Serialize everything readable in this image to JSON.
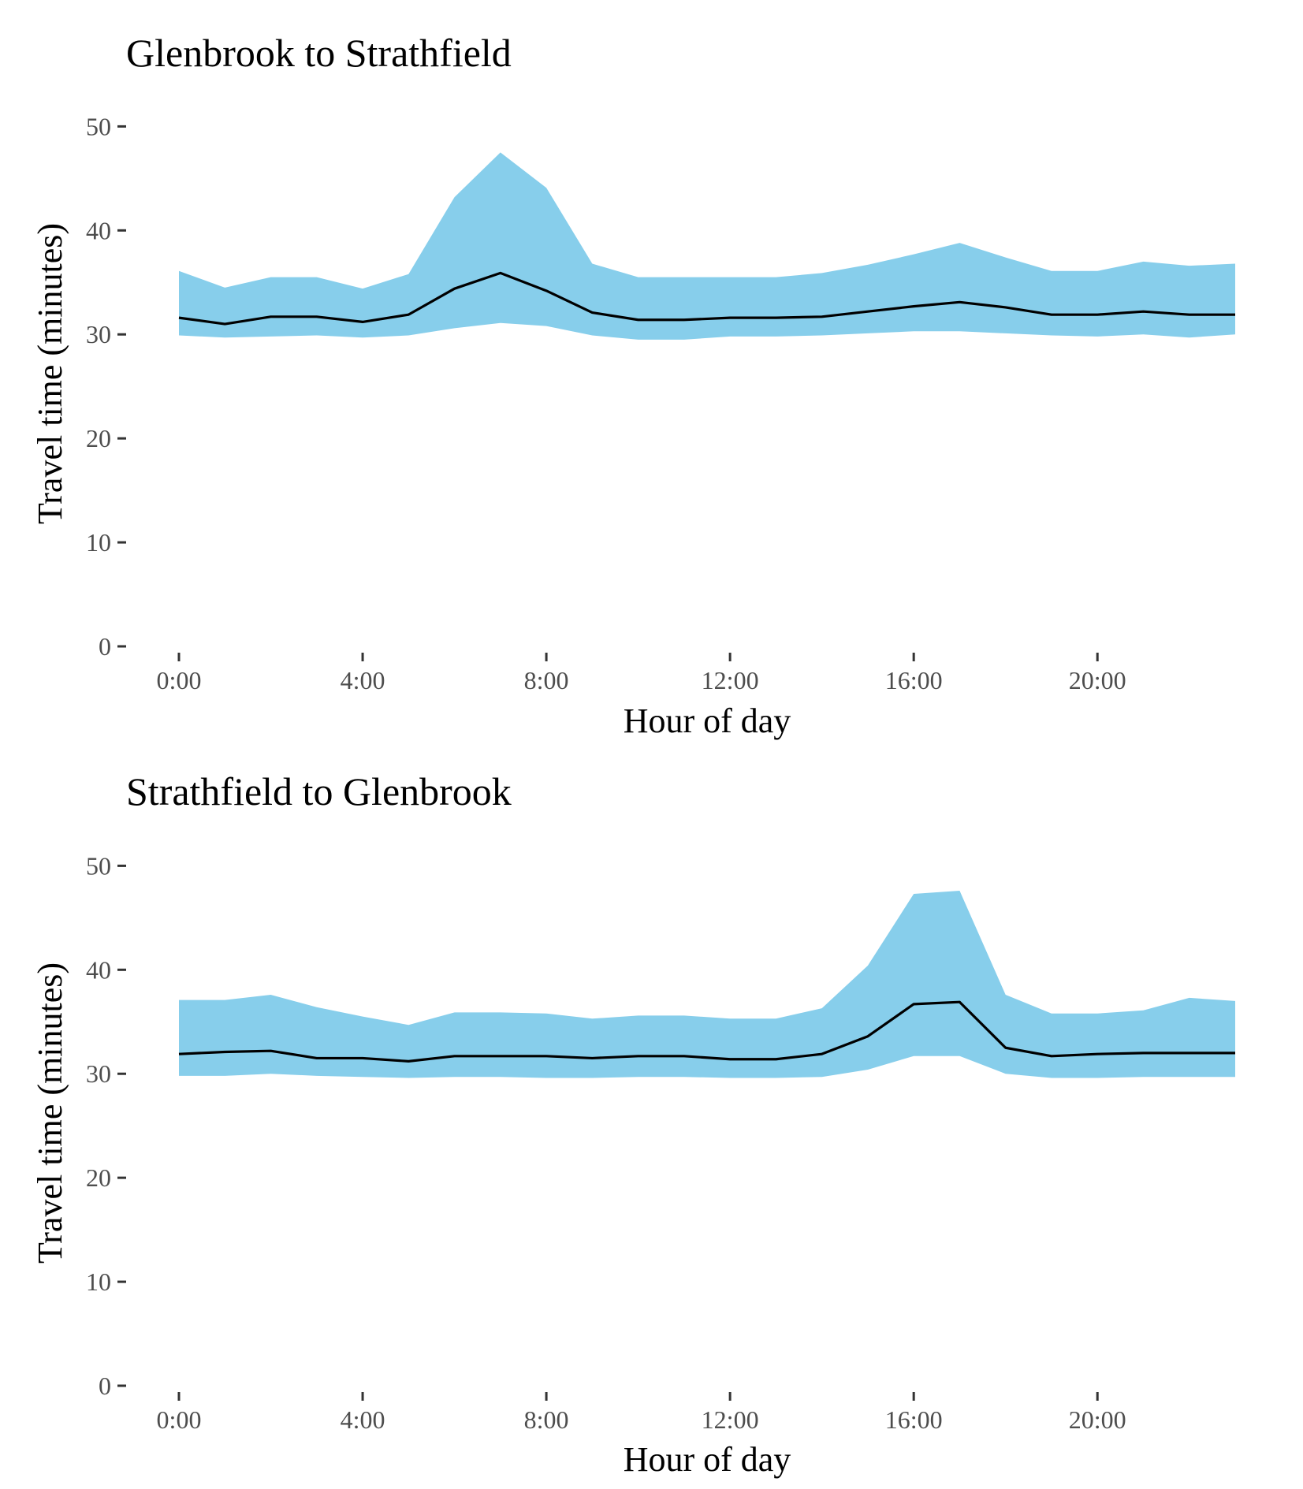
{
  "colors": {
    "band": "#87CEEB",
    "line": "#000000",
    "tick_text": "#4d4d4d",
    "tick_mark": "#333333"
  },
  "chart_data": [
    {
      "type": "area",
      "title": "Glenbrook to Strathfield",
      "xlabel": "Hour of day",
      "ylabel": "Travel time (minutes)",
      "x_tick_labels": [
        "0:00",
        "4:00",
        "8:00",
        "12:00",
        "16:00",
        "20:00"
      ],
      "x_tick_values": [
        0,
        4,
        8,
        12,
        16,
        20
      ],
      "y_tick_labels": [
        "0",
        "10",
        "20",
        "30",
        "40",
        "50"
      ],
      "y_tick_values": [
        0,
        10,
        20,
        30,
        40,
        50
      ],
      "xlim": [
        -1.15,
        24.15
      ],
      "ylim": [
        0,
        52
      ],
      "grid": false,
      "legend": "none",
      "x": [
        0,
        1,
        2,
        3,
        4,
        5,
        6,
        7,
        8,
        9,
        10,
        11,
        12,
        13,
        14,
        15,
        16,
        17,
        18,
        19,
        20,
        21,
        22,
        23
      ],
      "series": [
        {
          "role": "lower",
          "values": [
            29.9,
            29.7,
            29.8,
            29.9,
            29.7,
            29.9,
            30.6,
            31.1,
            30.8,
            29.9,
            29.5,
            29.5,
            29.8,
            29.8,
            29.9,
            30.1,
            30.3,
            30.3,
            30.1,
            29.9,
            29.8,
            30.0,
            29.7,
            30.0
          ]
        },
        {
          "role": "median",
          "values": [
            31.6,
            31.0,
            31.7,
            31.7,
            31.2,
            31.9,
            34.4,
            35.9,
            34.2,
            32.1,
            31.4,
            31.4,
            31.6,
            31.6,
            31.7,
            32.2,
            32.7,
            33.1,
            32.6,
            31.9,
            31.9,
            32.2,
            31.9,
            31.9
          ]
        },
        {
          "role": "upper",
          "values": [
            36.1,
            34.5,
            35.5,
            35.5,
            34.4,
            35.8,
            43.2,
            47.5,
            44.1,
            36.8,
            35.5,
            35.5,
            35.5,
            35.5,
            35.9,
            36.7,
            37.7,
            38.8,
            37.4,
            36.1,
            36.1,
            37.0,
            36.6,
            36.8
          ]
        }
      ]
    },
    {
      "type": "area",
      "title": "Strathfield to Glenbrook",
      "xlabel": "Hour of day",
      "ylabel": "Travel time (minutes)",
      "x_tick_labels": [
        "0:00",
        "4:00",
        "8:00",
        "12:00",
        "16:00",
        "20:00"
      ],
      "x_tick_values": [
        0,
        4,
        8,
        12,
        16,
        20
      ],
      "y_tick_labels": [
        "0",
        "10",
        "20",
        "30",
        "40",
        "50"
      ],
      "y_tick_values": [
        0,
        10,
        20,
        30,
        40,
        50
      ],
      "xlim": [
        -1.15,
        24.15
      ],
      "ylim": [
        0,
        52
      ],
      "grid": false,
      "legend": "none",
      "x": [
        0,
        1,
        2,
        3,
        4,
        5,
        6,
        7,
        8,
        9,
        10,
        11,
        12,
        13,
        14,
        15,
        16,
        17,
        18,
        19,
        20,
        21,
        22,
        23
      ],
      "series": [
        {
          "role": "lower",
          "values": [
            29.8,
            29.8,
            30.0,
            29.8,
            29.7,
            29.6,
            29.7,
            29.7,
            29.6,
            29.6,
            29.7,
            29.7,
            29.6,
            29.6,
            29.7,
            30.4,
            31.7,
            31.7,
            30.0,
            29.6,
            29.6,
            29.7,
            29.7,
            29.7
          ]
        },
        {
          "role": "median",
          "values": [
            31.9,
            32.1,
            32.2,
            31.5,
            31.5,
            31.2,
            31.7,
            31.7,
            31.7,
            31.5,
            31.7,
            31.7,
            31.4,
            31.4,
            31.9,
            33.6,
            36.7,
            36.9,
            32.5,
            31.7,
            31.9,
            32.0,
            32.0,
            32.0
          ]
        },
        {
          "role": "upper",
          "values": [
            37.1,
            37.1,
            37.6,
            36.4,
            35.5,
            34.7,
            35.9,
            35.9,
            35.8,
            35.3,
            35.6,
            35.6,
            35.3,
            35.3,
            36.3,
            40.4,
            47.3,
            47.6,
            37.6,
            35.8,
            35.8,
            36.1,
            37.3,
            37.0
          ]
        }
      ]
    }
  ]
}
